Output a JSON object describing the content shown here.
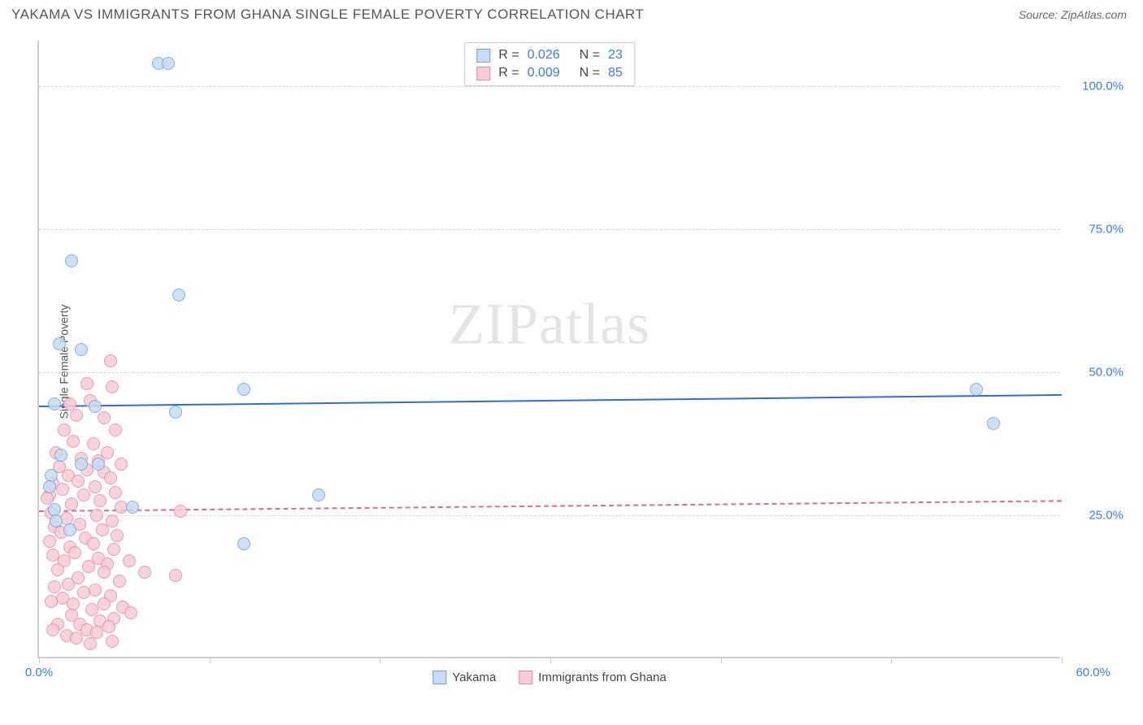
{
  "title": "YAKAMA VS IMMIGRANTS FROM GHANA SINGLE FEMALE POVERTY CORRELATION CHART",
  "source_label": "Source: ZipAtlas.com",
  "watermark_zip": "ZIP",
  "watermark_atlas": "atlas",
  "chart": {
    "type": "scatter",
    "y_axis_label": "Single Female Poverty",
    "x_range": [
      0,
      60
    ],
    "y_range": [
      0,
      108
    ],
    "x_ticks": [
      0,
      10,
      20,
      30,
      40,
      50,
      60
    ],
    "x_tick_labels_shown": {
      "0": "0.0%",
      "60": "60.0%"
    },
    "y_gridlines": [
      25,
      50,
      75,
      100
    ],
    "y_tick_labels": {
      "25": "25.0%",
      "50": "50.0%",
      "75": "75.0%",
      "100": "100.0%"
    },
    "background_color": "#ffffff",
    "axis_color": "#cccccc",
    "grid_color": "#d5d5d5",
    "tick_label_color": "#3b7dd8",
    "marker_radius": 8,
    "series": [
      {
        "name": "Yakama",
        "key": "yakama",
        "fill": "#c7dbf2",
        "stroke": "#6fa3dd",
        "trend_color": "#2d6fd0",
        "trend_solid": true,
        "r_value": "0.026",
        "n_value": "23",
        "trend": {
          "y_at_xmin": 44.2,
          "y_at_xmax": 46.2
        },
        "points": [
          [
            7.0,
            104.0
          ],
          [
            7.6,
            104.0
          ],
          [
            1.9,
            69.5
          ],
          [
            8.2,
            63.5
          ],
          [
            1.2,
            55.0
          ],
          [
            2.5,
            54.0
          ],
          [
            12.0,
            47.0
          ],
          [
            55.0,
            47.0
          ],
          [
            0.9,
            44.5
          ],
          [
            3.3,
            44.0
          ],
          [
            8.0,
            43.0
          ],
          [
            56.0,
            41.0
          ],
          [
            1.3,
            35.5
          ],
          [
            2.5,
            34.0
          ],
          [
            3.5,
            34.0
          ],
          [
            0.7,
            32.0
          ],
          [
            0.6,
            30.0
          ],
          [
            5.5,
            26.5
          ],
          [
            16.4,
            28.5
          ],
          [
            0.9,
            26.0
          ],
          [
            12.0,
            20.0
          ],
          [
            1.8,
            22.5
          ],
          [
            1.0,
            24.0
          ]
        ]
      },
      {
        "name": "Immigrants from Ghana",
        "key": "ghana",
        "fill": "#f6cdd7",
        "stroke": "#e68aa3",
        "trend_color": "#d66f8e",
        "trend_solid": false,
        "r_value": "0.009",
        "n_value": "85",
        "trend": {
          "y_at_xmin": 25.8,
          "y_at_xmax": 27.6
        },
        "points": [
          [
            4.2,
            52.0
          ],
          [
            4.3,
            47.5
          ],
          [
            2.8,
            48.0
          ],
          [
            3.0,
            45.0
          ],
          [
            1.8,
            44.5
          ],
          [
            2.2,
            42.5
          ],
          [
            3.8,
            42.0
          ],
          [
            4.5,
            40.0
          ],
          [
            1.5,
            40.0
          ],
          [
            2.0,
            38.0
          ],
          [
            3.2,
            37.5
          ],
          [
            4.0,
            36.0
          ],
          [
            1.0,
            36.0
          ],
          [
            2.5,
            35.0
          ],
          [
            3.5,
            34.5
          ],
          [
            4.8,
            34.0
          ],
          [
            1.2,
            33.5
          ],
          [
            2.8,
            33.0
          ],
          [
            0.6,
            28.5
          ],
          [
            3.8,
            32.5
          ],
          [
            1.7,
            32.0
          ],
          [
            4.2,
            31.5
          ],
          [
            2.3,
            31.0
          ],
          [
            0.8,
            30.5
          ],
          [
            3.3,
            30.0
          ],
          [
            1.4,
            29.5
          ],
          [
            4.5,
            29.0
          ],
          [
            2.6,
            28.5
          ],
          [
            0.5,
            28.0
          ],
          [
            3.6,
            27.5
          ],
          [
            1.9,
            27.0
          ],
          [
            4.8,
            26.5
          ],
          [
            8.3,
            25.7
          ],
          [
            0.7,
            25.5
          ],
          [
            3.4,
            25.0
          ],
          [
            1.6,
            24.5
          ],
          [
            4.3,
            24.0
          ],
          [
            2.4,
            23.5
          ],
          [
            0.9,
            23.0
          ],
          [
            3.7,
            22.5
          ],
          [
            1.3,
            22.0
          ],
          [
            4.6,
            21.5
          ],
          [
            2.7,
            21.0
          ],
          [
            0.6,
            20.5
          ],
          [
            3.2,
            20.0
          ],
          [
            1.8,
            19.5
          ],
          [
            4.4,
            19.0
          ],
          [
            2.1,
            18.5
          ],
          [
            0.8,
            18.0
          ],
          [
            3.5,
            17.5
          ],
          [
            5.3,
            17.0
          ],
          [
            1.5,
            17.0
          ],
          [
            4.0,
            16.5
          ],
          [
            2.9,
            16.0
          ],
          [
            6.2,
            15.0
          ],
          [
            1.1,
            15.5
          ],
          [
            3.8,
            15.0
          ],
          [
            8.0,
            14.5
          ],
          [
            2.3,
            14.0
          ],
          [
            4.7,
            13.5
          ],
          [
            1.7,
            13.0
          ],
          [
            0.9,
            12.5
          ],
          [
            3.3,
            12.0
          ],
          [
            2.6,
            11.5
          ],
          [
            4.2,
            11.0
          ],
          [
            1.4,
            10.5
          ],
          [
            3.8,
            9.5
          ],
          [
            0.7,
            10.0
          ],
          [
            2.0,
            9.5
          ],
          [
            4.9,
            9.0
          ],
          [
            3.1,
            8.5
          ],
          [
            4.4,
            7.0
          ],
          [
            1.9,
            7.5
          ],
          [
            5.4,
            8.0
          ],
          [
            3.6,
            6.5
          ],
          [
            2.4,
            6.0
          ],
          [
            1.1,
            6.0
          ],
          [
            4.1,
            5.5
          ],
          [
            2.8,
            5.0
          ],
          [
            0.8,
            5.0
          ],
          [
            3.4,
            4.5
          ],
          [
            1.6,
            4.0
          ],
          [
            4.3,
            3.0
          ],
          [
            2.2,
            3.5
          ],
          [
            3.0,
            2.5
          ]
        ]
      }
    ]
  }
}
